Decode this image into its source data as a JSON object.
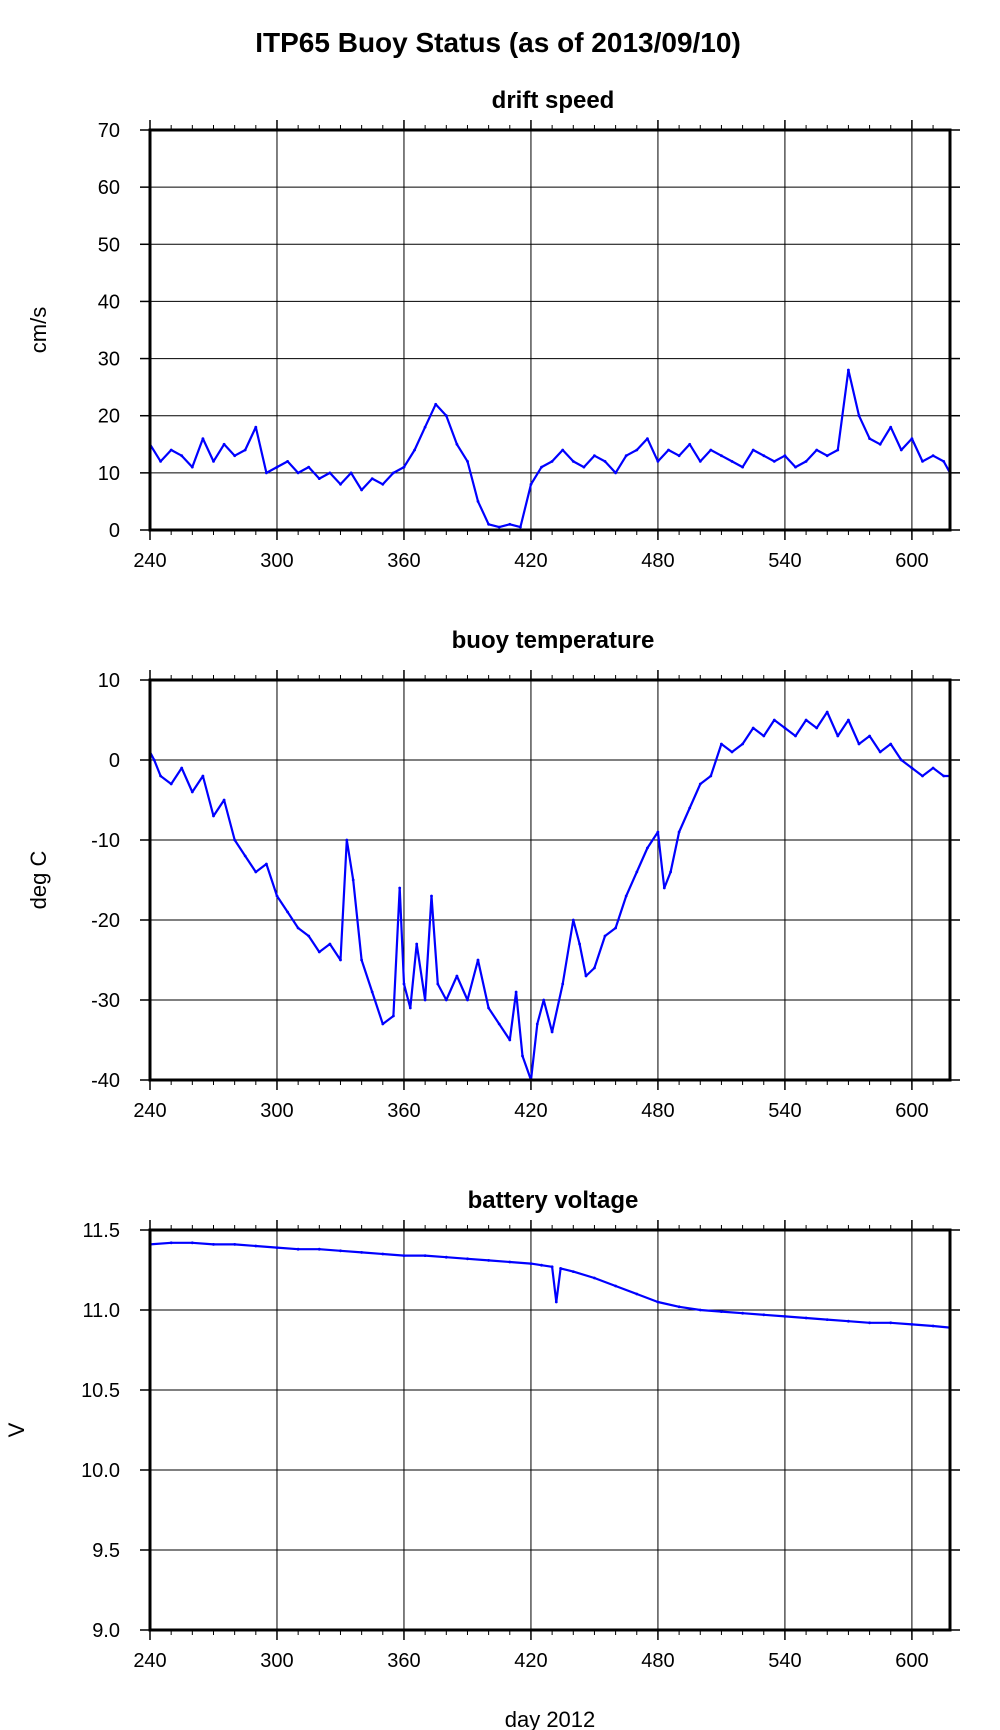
{
  "page": {
    "title": "ITP65 Buoy Status (as of 2013/09/10)"
  },
  "chart_data": [
    {
      "type": "line",
      "title": "drift speed",
      "ylabel": "cm/s",
      "xlabel": "",
      "xlim": [
        240,
        618
      ],
      "ylim": [
        0,
        70
      ],
      "xticks": [
        240,
        300,
        360,
        420,
        480,
        540,
        600
      ],
      "yticks": [
        0,
        10,
        20,
        30,
        40,
        50,
        60,
        70
      ],
      "ytick_labels": [
        "0",
        "10",
        "20",
        "30",
        "40",
        "50",
        "60",
        "70"
      ],
      "grid": true,
      "color": "#0000ff",
      "series": [
        {
          "x": [
            240,
            245,
            250,
            255,
            260,
            265,
            270,
            275,
            280,
            285,
            290,
            295,
            300,
            305,
            310,
            315,
            320,
            325,
            330,
            335,
            340,
            345,
            350,
            355,
            360,
            365,
            370,
            375,
            380,
            385,
            390,
            395,
            400,
            405,
            410,
            415,
            420,
            425,
            430,
            435,
            440,
            445,
            450,
            455,
            460,
            465,
            470,
            475,
            480,
            485,
            490,
            495,
            500,
            505,
            510,
            515,
            520,
            525,
            530,
            535,
            540,
            545,
            550,
            555,
            560,
            565,
            570,
            575,
            580,
            585,
            590,
            595,
            600,
            605,
            610,
            615,
            618
          ],
          "y": [
            15,
            12,
            14,
            13,
            11,
            16,
            12,
            15,
            13,
            14,
            18,
            10,
            11,
            12,
            10,
            11,
            9,
            10,
            8,
            10,
            7,
            9,
            8,
            10,
            11,
            14,
            18,
            22,
            20,
            15,
            12,
            5,
            1,
            0.5,
            1,
            0.5,
            8,
            11,
            12,
            14,
            12,
            11,
            13,
            12,
            10,
            13,
            14,
            16,
            12,
            14,
            13,
            15,
            12,
            14,
            13,
            12,
            11,
            14,
            13,
            12,
            13,
            11,
            12,
            14,
            13,
            14,
            28,
            20,
            16,
            15,
            18,
            14,
            16,
            12,
            13,
            12,
            10
          ]
        }
      ]
    },
    {
      "type": "line",
      "title": "buoy temperature",
      "ylabel": "deg C",
      "xlabel": "",
      "xlim": [
        240,
        618
      ],
      "ylim": [
        -40,
        10
      ],
      "xticks": [
        240,
        300,
        360,
        420,
        480,
        540,
        600
      ],
      "yticks": [
        -40,
        -30,
        -20,
        -10,
        0,
        10
      ],
      "ytick_labels": [
        "-40",
        "-30",
        "-20",
        "-10",
        "0",
        "10"
      ],
      "grid": true,
      "color": "#0000ff",
      "series": [
        {
          "x": [
            240,
            242,
            245,
            250,
            255,
            260,
            265,
            270,
            275,
            280,
            285,
            290,
            295,
            300,
            305,
            310,
            315,
            320,
            325,
            330,
            333,
            336,
            340,
            345,
            350,
            355,
            358,
            360,
            363,
            366,
            370,
            373,
            376,
            380,
            385,
            390,
            395,
            400,
            405,
            410,
            413,
            416,
            420,
            423,
            426,
            430,
            435,
            440,
            443,
            446,
            450,
            455,
            460,
            465,
            470,
            475,
            480,
            483,
            486,
            490,
            495,
            500,
            505,
            510,
            515,
            520,
            525,
            530,
            535,
            540,
            545,
            550,
            555,
            560,
            565,
            570,
            575,
            580,
            585,
            590,
            595,
            600,
            605,
            610,
            615,
            618
          ],
          "y": [
            1,
            0,
            -2,
            -3,
            -1,
            -4,
            -2,
            -7,
            -5,
            -10,
            -12,
            -14,
            -13,
            -17,
            -19,
            -21,
            -22,
            -24,
            -23,
            -25,
            -10,
            -15,
            -25,
            -29,
            -33,
            -32,
            -16,
            -28,
            -31,
            -23,
            -30,
            -17,
            -28,
            -30,
            -27,
            -30,
            -25,
            -31,
            -33,
            -35,
            -29,
            -37,
            -40,
            -33,
            -30,
            -34,
            -28,
            -20,
            -23,
            -27,
            -26,
            -22,
            -21,
            -17,
            -14,
            -11,
            -9,
            -16,
            -14,
            -9,
            -6,
            -3,
            -2,
            2,
            1,
            2,
            4,
            3,
            5,
            4,
            3,
            5,
            4,
            6,
            3,
            5,
            2,
            3,
            1,
            2,
            0,
            -1,
            -2,
            -1,
            -2,
            -2
          ]
        }
      ]
    },
    {
      "type": "line",
      "title": "battery voltage",
      "ylabel": "V",
      "xlabel": "day 2012",
      "xlim": [
        240,
        618
      ],
      "ylim": [
        9.0,
        11.5
      ],
      "xticks": [
        240,
        300,
        360,
        420,
        480,
        540,
        600
      ],
      "yticks": [
        9.0,
        9.5,
        10.0,
        10.5,
        11.0,
        11.5
      ],
      "ytick_labels": [
        "9.0",
        "9.5",
        "10.0",
        "10.5",
        "11.0",
        "11.5"
      ],
      "grid": true,
      "color": "#0000ff",
      "series": [
        {
          "x": [
            240,
            250,
            260,
            270,
            280,
            290,
            300,
            310,
            320,
            330,
            340,
            350,
            360,
            370,
            380,
            390,
            400,
            410,
            420,
            425,
            430,
            432,
            434,
            440,
            450,
            460,
            470,
            480,
            490,
            500,
            510,
            520,
            530,
            540,
            550,
            560,
            570,
            580,
            590,
            600,
            610,
            618
          ],
          "y": [
            11.41,
            11.42,
            11.42,
            11.41,
            11.41,
            11.4,
            11.39,
            11.38,
            11.38,
            11.37,
            11.36,
            11.35,
            11.34,
            11.34,
            11.33,
            11.32,
            11.31,
            11.3,
            11.29,
            11.28,
            11.27,
            11.05,
            11.26,
            11.24,
            11.2,
            11.15,
            11.1,
            11.05,
            11.02,
            11.0,
            10.99,
            10.98,
            10.97,
            10.96,
            10.95,
            10.94,
            10.93,
            10.92,
            10.92,
            10.91,
            10.9,
            10.89
          ]
        }
      ]
    }
  ]
}
